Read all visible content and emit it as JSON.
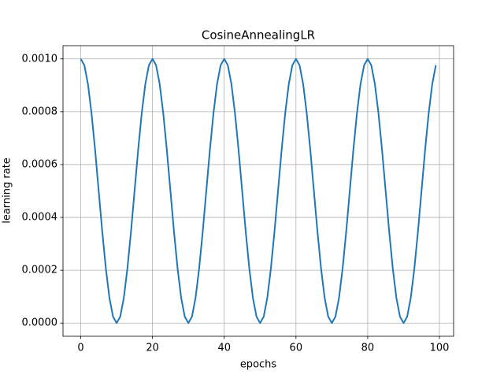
{
  "chart_data": {
    "type": "line",
    "title": "CosineAnnealingLR",
    "x_label": "epochs",
    "y_label": "learning rate",
    "x": [
      0,
      1,
      2,
      3,
      4,
      5,
      6,
      7,
      8,
      9,
      10,
      11,
      12,
      13,
      14,
      15,
      16,
      17,
      18,
      19,
      20,
      21,
      22,
      23,
      24,
      25,
      26,
      27,
      28,
      29,
      30,
      31,
      32,
      33,
      34,
      35,
      36,
      37,
      38,
      39,
      40,
      41,
      42,
      43,
      44,
      45,
      46,
      47,
      48,
      49,
      50,
      51,
      52,
      53,
      54,
      55,
      56,
      57,
      58,
      59,
      60,
      61,
      62,
      63,
      64,
      65,
      66,
      67,
      68,
      69,
      70,
      71,
      72,
      73,
      74,
      75,
      76,
      77,
      78,
      79,
      80,
      81,
      82,
      83,
      84,
      85,
      86,
      87,
      88,
      89,
      90,
      91,
      92,
      93,
      94,
      95,
      96,
      97,
      98,
      99
    ],
    "series": [
      {
        "color": "#1f77b4",
        "values": [
          0.001,
          0.000976,
          0.000905,
          0.000794,
          0.000655,
          0.0005,
          0.000345,
          0.000206,
          9.5e-05,
          2.4e-05,
          0,
          2.4e-05,
          9.5e-05,
          0.000206,
          0.000345,
          0.0005,
          0.000655,
          0.000794,
          0.000905,
          0.000976,
          0.001,
          0.000976,
          0.000905,
          0.000794,
          0.000655,
          0.0005,
          0.000345,
          0.000206,
          9.5e-05,
          2.4e-05,
          0,
          2.4e-05,
          9.5e-05,
          0.000206,
          0.000345,
          0.0005,
          0.000655,
          0.000794,
          0.000905,
          0.000976,
          0.001,
          0.000976,
          0.000905,
          0.000794,
          0.000655,
          0.0005,
          0.000345,
          0.000206,
          9.5e-05,
          2.4e-05,
          0,
          2.4e-05,
          9.5e-05,
          0.000206,
          0.000345,
          0.0005,
          0.000655,
          0.000794,
          0.000905,
          0.000976,
          0.001,
          0.000976,
          0.000905,
          0.000794,
          0.000655,
          0.0005,
          0.000345,
          0.000206,
          9.5e-05,
          2.4e-05,
          0,
          2.4e-05,
          9.5e-05,
          0.000206,
          0.000345,
          0.0005,
          0.000655,
          0.000794,
          0.000905,
          0.000976,
          0.001,
          0.000976,
          0.000905,
          0.000794,
          0.000655,
          0.0005,
          0.000345,
          0.000206,
          9.5e-05,
          2.4e-05,
          0,
          2.4e-05,
          9.5e-05,
          0.000206,
          0.000345,
          0.0005,
          0.000655,
          0.000794,
          0.000905,
          0.000976
        ]
      }
    ],
    "xlim": [
      -4.95,
      103.95
    ],
    "xticks": [
      0,
      20,
      40,
      60,
      80,
      100
    ],
    "ylim": [
      -5e-05,
      0.00105
    ],
    "yticks": [
      {
        "value": 0,
        "label": "0.0000"
      },
      {
        "value": 0.0002,
        "label": "0.0002"
      },
      {
        "value": 0.0004,
        "label": "0.0004"
      },
      {
        "value": 0.0006,
        "label": "0.0006"
      },
      {
        "value": 0.0008,
        "label": "0.0008"
      },
      {
        "value": 0.001,
        "label": "0.0010"
      }
    ],
    "grid": true
  }
}
